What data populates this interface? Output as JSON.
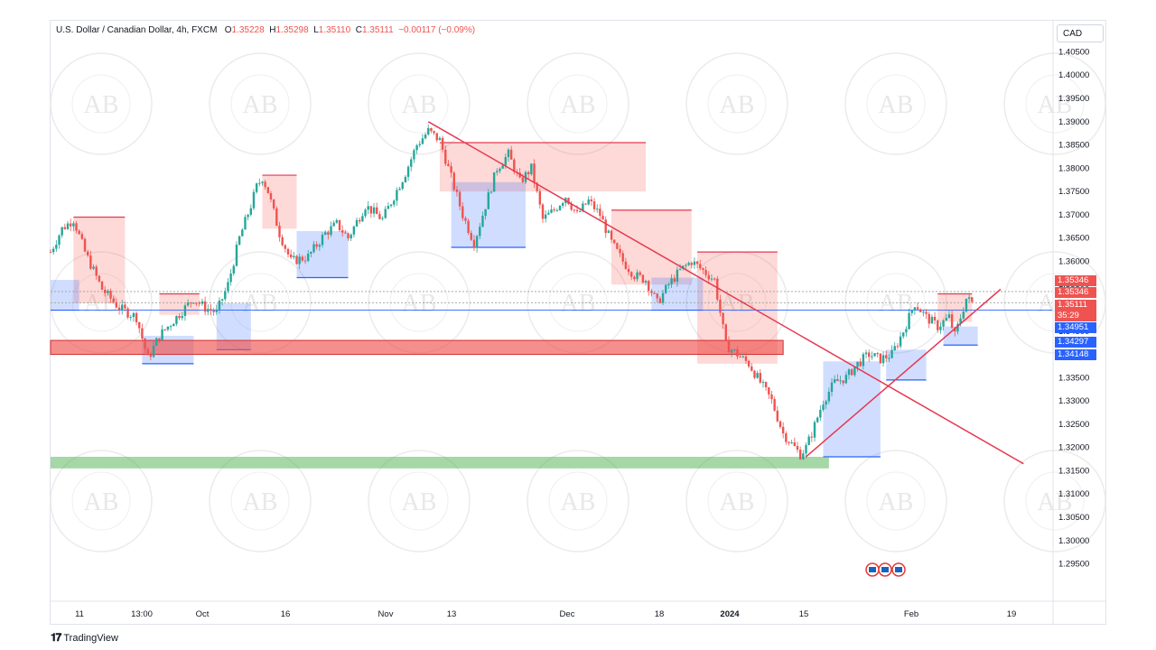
{
  "header": {
    "symbol": "U.S. Dollar / Canadian Dollar, 4h, FXCM",
    "open_label": "O",
    "open": "1.35228",
    "high_label": "H",
    "high": "1.35298",
    "low_label": "L",
    "low": "1.35110",
    "close_label": "C",
    "close": "1.35111",
    "change": "−0.00117 (−0.09%)"
  },
  "currency_button": "CAD",
  "price_axis": [
    "1.40500",
    "1.40000",
    "1.39500",
    "1.39000",
    "1.38500",
    "1.38000",
    "1.37500",
    "1.37000",
    "1.36500",
    "1.36000",
    "1.35500",
    "1.35000",
    "1.34500",
    "1.34000",
    "1.33500",
    "1.33000",
    "1.32500",
    "1.32000",
    "1.31500",
    "1.31000",
    "1.30500",
    "1.30000",
    "1.29500"
  ],
  "time_axis": [
    "11",
    "13:00",
    "Oct",
    "16",
    "Nov",
    "13",
    "Dec",
    "18",
    "2024",
    "15",
    "Feb",
    "19"
  ],
  "price_tags": [
    {
      "text": "1.35346",
      "color": "#ef5350"
    },
    {
      "text": "1.35346",
      "color": "#ef5350"
    },
    {
      "text": "1.35111",
      "color": "#ef5350"
    },
    {
      "text": "35:29",
      "color": "#ef5350"
    },
    {
      "text": "1.34951",
      "color": "#2962ff"
    },
    {
      "text": "1.34297",
      "color": "#2962ff"
    },
    {
      "text": "1.34148",
      "color": "#2962ff"
    }
  ],
  "watermark": "AB",
  "footer": {
    "brand": "TradingView",
    "logo_icon": "tradingview-logo-icon"
  },
  "event_icons": [
    "us-flag-icon",
    "us-flag-icon",
    "us-flag-icon"
  ],
  "colors": {
    "bull": "#26a69a",
    "bear": "#ef5350",
    "resistance_zone": "#ef5350",
    "support_zone": "#4caf50",
    "trendline": "#e53950",
    "demand_box": "#2962ff",
    "supply_box": "#f44336"
  },
  "chart_data": {
    "type": "candlestick",
    "instrument": "USDCAD",
    "timeframe": "4h",
    "ylim": [
      1.292,
      1.408
    ],
    "price_path": [
      [
        0,
        1.362
      ],
      [
        2,
        1.367
      ],
      [
        4,
        1.369
      ],
      [
        6,
        1.362
      ],
      [
        9,
        1.354
      ],
      [
        12,
        1.35
      ],
      [
        15,
        1.348
      ],
      [
        17,
        1.339
      ],
      [
        19,
        1.344
      ],
      [
        22,
        1.348
      ],
      [
        25,
        1.352
      ],
      [
        27,
        1.35
      ],
      [
        29,
        1.349
      ],
      [
        31,
        1.355
      ],
      [
        33,
        1.365
      ],
      [
        35,
        1.372
      ],
      [
        36,
        1.376
      ],
      [
        37,
        1.378
      ],
      [
        38,
        1.375
      ],
      [
        40,
        1.366
      ],
      [
        42,
        1.36
      ],
      [
        45,
        1.361
      ],
      [
        48,
        1.366
      ],
      [
        50,
        1.368
      ],
      [
        52,
        1.365
      ],
      [
        55,
        1.372
      ],
      [
        58,
        1.369
      ],
      [
        60,
        1.374
      ],
      [
        62,
        1.379
      ],
      [
        64,
        1.385
      ],
      [
        66,
        1.388
      ],
      [
        67,
        1.387
      ],
      [
        68,
        1.386
      ],
      [
        70,
        1.378
      ],
      [
        72,
        1.37
      ],
      [
        74,
        1.364
      ],
      [
        76,
        1.372
      ],
      [
        78,
        1.38
      ],
      [
        80,
        1.383
      ],
      [
        82,
        1.377
      ],
      [
        84,
        1.38
      ],
      [
        86,
        1.369
      ],
      [
        88,
        1.371
      ],
      [
        90,
        1.374
      ],
      [
        92,
        1.37
      ],
      [
        94,
        1.373
      ],
      [
        96,
        1.37
      ],
      [
        98,
        1.364
      ],
      [
        100,
        1.36
      ],
      [
        102,
        1.357
      ],
      [
        104,
        1.356
      ],
      [
        106,
        1.351
      ],
      [
        108,
        1.355
      ],
      [
        110,
        1.358
      ],
      [
        112,
        1.36
      ],
      [
        114,
        1.358
      ],
      [
        116,
        1.356
      ],
      [
        118,
        1.342
      ],
      [
        120,
        1.34
      ],
      [
        122,
        1.338
      ],
      [
        124,
        1.334
      ],
      [
        126,
        1.33
      ],
      [
        128,
        1.323
      ],
      [
        130,
        1.32
      ],
      [
        131,
        1.3185
      ],
      [
        132,
        1.32
      ],
      [
        133,
        1.323
      ],
      [
        135,
        1.33
      ],
      [
        137,
        1.334
      ],
      [
        139,
        1.335
      ],
      [
        141,
        1.338
      ],
      [
        143,
        1.34
      ],
      [
        145,
        1.339
      ],
      [
        147,
        1.34
      ],
      [
        149,
        1.345
      ],
      [
        151,
        1.351
      ],
      [
        153,
        1.348
      ],
      [
        155,
        1.346
      ],
      [
        157,
        1.348
      ],
      [
        158,
        1.344
      ],
      [
        159,
        1.348
      ],
      [
        160,
        1.352
      ],
      [
        161,
        1.3511
      ]
    ],
    "resistance_zone": [
      1.34,
      1.343
    ],
    "support_zone": [
      1.3155,
      1.318
    ],
    "trendlines": [
      {
        "from": [
          66,
          1.39
        ],
        "to": [
          170,
          1.3165
        ]
      },
      {
        "from": [
          132,
          1.318
        ],
        "to": [
          166,
          1.354
        ]
      }
    ],
    "supply_zones": [
      {
        "x": [
          4,
          13
        ],
        "y": [
          1.351,
          1.3695
        ]
      },
      {
        "x": [
          19,
          26
        ],
        "y": [
          1.3485,
          1.353
        ]
      },
      {
        "x": [
          37,
          43
        ],
        "y": [
          1.367,
          1.3785
        ]
      },
      {
        "x": [
          68,
          104
        ],
        "y": [
          1.375,
          1.3855
        ]
      },
      {
        "x": [
          98,
          112
        ],
        "y": [
          1.355,
          1.371
        ]
      },
      {
        "x": [
          113,
          127
        ],
        "y": [
          1.338,
          1.362
        ]
      },
      {
        "x": [
          155,
          161
        ],
        "y": [
          1.347,
          1.353
        ]
      }
    ],
    "demand_zones": [
      {
        "x": [
          0,
          5
        ],
        "y": [
          1.3495,
          1.356
        ]
      },
      {
        "x": [
          16,
          25
        ],
        "y": [
          1.338,
          1.344
        ]
      },
      {
        "x": [
          29,
          35
        ],
        "y": [
          1.341,
          1.351
        ]
      },
      {
        "x": [
          43,
          52
        ],
        "y": [
          1.3565,
          1.3665
        ]
      },
      {
        "x": [
          70,
          83
        ],
        "y": [
          1.363,
          1.377
        ]
      },
      {
        "x": [
          105,
          114
        ],
        "y": [
          1.3495,
          1.3565
        ]
      },
      {
        "x": [
          135,
          145
        ],
        "y": [
          1.318,
          1.3385
        ]
      },
      {
        "x": [
          146,
          153
        ],
        "y": [
          1.3345,
          1.341
        ]
      },
      {
        "x": [
          156,
          162
        ],
        "y": [
          1.342,
          1.346
        ]
      }
    ],
    "horizontal_lines": [
      1.3535,
      1.3511,
      1.3495
    ],
    "last_price": 1.35111
  }
}
